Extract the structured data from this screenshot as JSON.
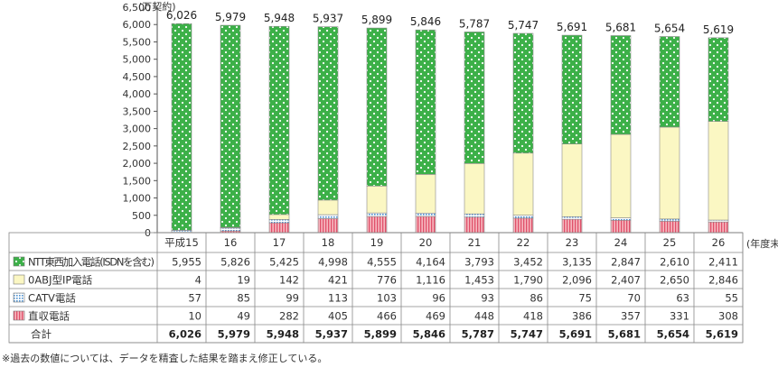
{
  "chart_data": {
    "type": "bar",
    "stacked": true,
    "unit_label": "(万契約)",
    "x_unit_label": "(年度末)",
    "categories": [
      "平成15",
      "16",
      "17",
      "18",
      "19",
      "20",
      "21",
      "22",
      "23",
      "24",
      "25",
      "26"
    ],
    "ylim": [
      0,
      6500
    ],
    "yticks": [
      0,
      500,
      1000,
      1500,
      2000,
      2500,
      3000,
      3500,
      4000,
      4500,
      5000,
      5500,
      6000,
      6500
    ],
    "series": [
      {
        "name": "直収電話",
        "values": [
          10,
          49,
          282,
          405,
          466,
          469,
          448,
          418,
          386,
          357,
          331,
          308
        ],
        "labels": [
          "10",
          "49",
          "282",
          "405",
          "466",
          "469",
          "448",
          "418",
          "386",
          "357",
          "331",
          "308"
        ],
        "color": "#f4a3ad"
      },
      {
        "name": "CATV電話",
        "values": [
          57,
          85,
          99,
          113,
          103,
          96,
          93,
          86,
          75,
          70,
          63,
          55
        ],
        "labels": [
          "57",
          "85",
          "99",
          "113",
          "103",
          "96",
          "93",
          "86",
          "75",
          "70",
          "63",
          "55"
        ],
        "color": "#cfe6f7"
      },
      {
        "name": "0ABJ型IP電話",
        "values": [
          4,
          19,
          142,
          421,
          776,
          1116,
          1453,
          1790,
          2096,
          2407,
          2650,
          2846
        ],
        "labels": [
          "4",
          "19",
          "142",
          "421",
          "776",
          "1,116",
          "1,453",
          "1,790",
          "2,096",
          "2,407",
          "2,650",
          "2,846"
        ],
        "color": "#fbf7c3"
      },
      {
        "name": "NTT東西加入電話(ISDNを含む)",
        "values": [
          5955,
          5826,
          5425,
          4998,
          4555,
          4164,
          3793,
          3452,
          3135,
          2847,
          2610,
          2411
        ],
        "labels": [
          "5,955",
          "5,826",
          "5,425",
          "4,998",
          "4,555",
          "4,164",
          "3,793",
          "3,452",
          "3,135",
          "2,847",
          "2,610",
          "2,411"
        ],
        "color": "#3cb048"
      }
    ],
    "total": {
      "name": "合計",
      "values": [
        6026,
        5979,
        5948,
        5937,
        5899,
        5846,
        5787,
        5747,
        5691,
        5681,
        5654,
        5619
      ],
      "labels": [
        "6,026",
        "5,979",
        "5,948",
        "5,937",
        "5,899",
        "5,846",
        "5,787",
        "5,747",
        "5,691",
        "5,681",
        "5,654",
        "5,619"
      ]
    },
    "ytick_labels": [
      "0",
      "500",
      "1,000",
      "1,500",
      "2,000",
      "2,500",
      "3,000",
      "3,500",
      "4,000",
      "4,500",
      "5,000",
      "5,500",
      "6,000",
      "6,500"
    ],
    "legend": "table-below",
    "grid": false
  },
  "footnote": "※過去の数値については、データを精査した結果を踏まえ修正している。"
}
